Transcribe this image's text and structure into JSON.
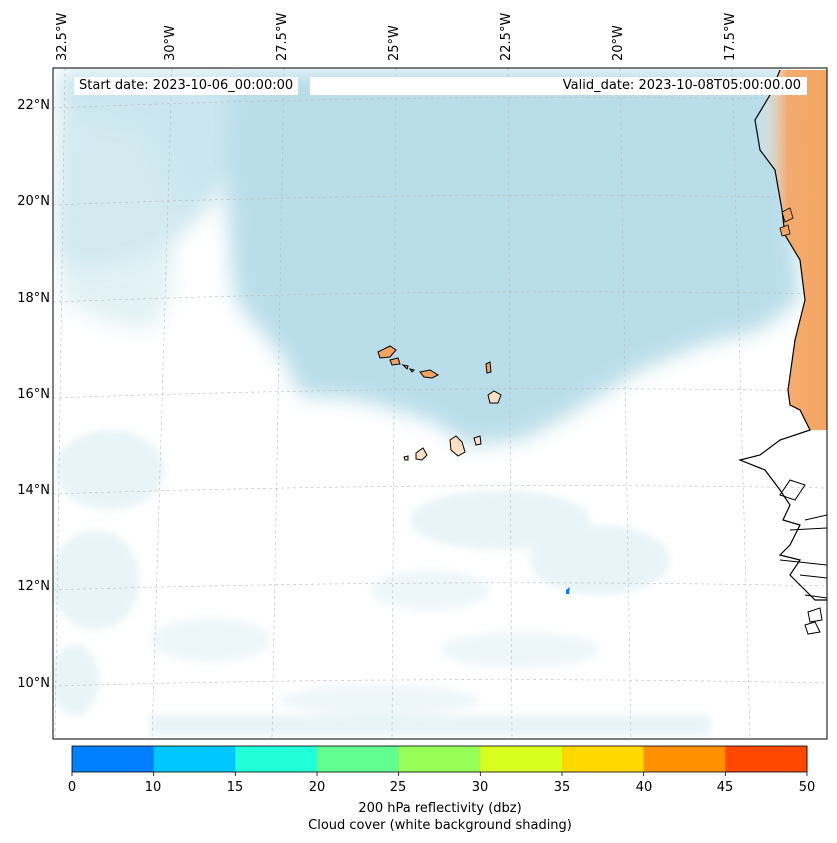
{
  "map": {
    "lon_labels": [
      "32.5°W",
      "30°W",
      "27.5°W",
      "25°W",
      "22.5°W",
      "20°W",
      "17.5°W"
    ],
    "lat_labels": [
      "22°N",
      "20°N",
      "18°N",
      "16°N",
      "14°N",
      "12°N",
      "10°N"
    ],
    "lon_range": [
      -33,
      -16.5
    ],
    "lat_range": [
      8.9,
      22.8
    ]
  },
  "info": {
    "start_date": "Start date: 2023-10-06_00:00:00",
    "valid_date": "Valid_date: 2023-10-08T05:00:00.00"
  },
  "colorbar": {
    "ticks": [
      "0",
      "10",
      "15",
      "20",
      "25",
      "30",
      "35",
      "40",
      "45",
      "50"
    ],
    "colors": [
      "#0080ff",
      "#00c8ff",
      "#20ffd8",
      "#60ff90",
      "#98ff58",
      "#d8ff20",
      "#ffd800",
      "#ff9000",
      "#ff4800"
    ],
    "label1": "200 hPa reflectivity (dbz)",
    "label2": "Cloud cover (white background shading)"
  },
  "colors": {
    "cloud": "#add8e6",
    "land_fill": "#f4a460",
    "coast": "#000000"
  }
}
